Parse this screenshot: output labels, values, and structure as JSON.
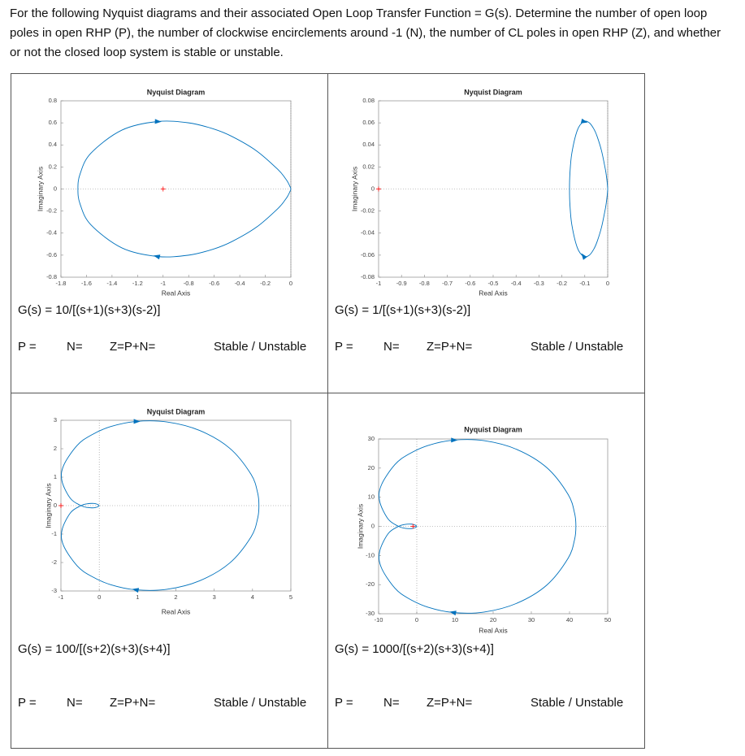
{
  "intro": "For the following Nyquist diagrams and their associated Open Loop Transfer Function = G(s).  Determine the number of open loop poles in open RHP (P), the number of clockwise encirclements around -1 (N), the number of CL poles in open RHP (Z), and whether or not the closed loop system is stable or unstable.",
  "cells": [
    {
      "chart_data": {
        "type": "line",
        "title": "Nyquist Diagram",
        "x_label": "Real Axis",
        "y_label": "Imaginary Axis",
        "xlim": [
          -1.8,
          0
        ],
        "xticks": [
          -1.8,
          -1.6,
          -1.4,
          -1.2,
          -1,
          -0.8,
          -0.6,
          -0.4,
          -0.2,
          0
        ],
        "ylim": [
          -0.8,
          0.8
        ],
        "yticks": [
          -0.8,
          -0.6,
          -0.4,
          -0.2,
          0,
          0.2,
          0.4,
          0.6,
          0.8
        ],
        "critical_point": {
          "x": -1,
          "y": 0,
          "color": "#ff0000"
        },
        "series": [
          {
            "color": "#0072bd",
            "x": [
              0,
              -0.0018,
              -0.0218,
              -0.0447,
              -0.103,
              -0.269,
              -0.46,
              -0.606,
              -0.8,
              -1.045,
              -1.323,
              -1.566,
              -1.65,
              -1.667,
              -1.65,
              -1.566,
              -1.323,
              -1.045,
              -0.8,
              -0.606,
              -0.46,
              -0.269,
              -0.103,
              -0.0447,
              -0.0218,
              -0.0018,
              0
            ],
            "values": [
              0,
              -0.0092,
              -0.0585,
              -0.0988,
              -0.179,
              -0.346,
              -0.476,
              -0.545,
              -0.6,
              -0.612,
              -0.534,
              -0.324,
              -0.137,
              0,
              0.137,
              0.324,
              0.534,
              0.612,
              0.6,
              0.545,
              0.476,
              0.346,
              0.179,
              0.0988,
              0.0585,
              0.0092,
              0
            ]
          }
        ]
      },
      "transfer_function": "G(s) = 10/[(s+1)(s+3)(s-2)]",
      "answer_row": {
        "p": "P =",
        "n": "N=",
        "z": "Z=P+N=",
        "stability": "Stable / Unstable"
      }
    },
    {
      "chart_data": {
        "type": "line",
        "title": "Nyquist Diagram",
        "x_label": "Real Axis",
        "y_label": "Imaginary Axis",
        "xlim": [
          -1,
          0
        ],
        "xticks": [
          -1,
          -0.9,
          -0.8,
          -0.7,
          -0.6,
          -0.5,
          -0.4,
          -0.3,
          -0.2,
          -0.1,
          0
        ],
        "ylim": [
          -0.08,
          0.08
        ],
        "yticks": [
          -0.08,
          -0.06,
          -0.04,
          -0.02,
          0,
          0.02,
          0.04,
          0.06,
          0.08
        ],
        "critical_point": {
          "x": -1,
          "y": 0,
          "color": "#ff0000"
        },
        "series": [
          {
            "color": "#0072bd",
            "x": [
              0,
              -0.00018,
              -0.00218,
              -0.00447,
              -0.0103,
              -0.0269,
              -0.046,
              -0.0606,
              -0.08,
              -0.1045,
              -0.1323,
              -0.1566,
              -0.165,
              -0.1667,
              -0.165,
              -0.1566,
              -0.1323,
              -0.1045,
              -0.08,
              -0.0606,
              -0.046,
              -0.0269,
              -0.0103,
              -0.00447,
              -0.00218,
              -0.00018,
              0
            ],
            "values": [
              0,
              -0.00092,
              -0.00585,
              -0.00988,
              -0.0179,
              -0.0346,
              -0.0476,
              -0.0545,
              -0.06,
              -0.0612,
              -0.0534,
              -0.0324,
              -0.0137,
              0,
              0.0137,
              0.0324,
              0.0534,
              0.0612,
              0.06,
              0.0545,
              0.0476,
              0.0346,
              0.0179,
              0.00988,
              0.00585,
              0.00092,
              0
            ]
          }
        ]
      },
      "transfer_function": "G(s) = 1/[(s+1)(s+3)(s-2)]",
      "answer_row": {
        "p": "P =",
        "n": "N=",
        "z": "Z=P+N=",
        "stability": "Stable / Unstable"
      }
    },
    {
      "chart_data": {
        "type": "line",
        "title": "Nyquist Diagram",
        "x_label": "Real Axis",
        "y_label": "Imaginary Axis",
        "xlim": [
          -1,
          5
        ],
        "xticks": [
          -1,
          0,
          1,
          2,
          3,
          4,
          5
        ],
        "ylim": [
          -3,
          3
        ],
        "yticks": [
          -3,
          -2,
          -1,
          0,
          1,
          2,
          3
        ],
        "critical_point": {
          "x": -1,
          "y": 0,
          "color": "#ff0000"
        },
        "series": [
          {
            "color": "#0072bd",
            "x": [
              0,
              -0.0351,
              -0.139,
              -0.3205,
              -0.476,
              -0.75,
              -0.974,
              -0.927,
              -0.577,
              -0.219,
              0.292,
              0.963,
              1.765,
              2.621,
              3.405,
              3.963,
              4.133,
              4.167,
              4.133,
              3.963,
              3.405,
              2.621,
              1.765,
              0.963,
              0.292,
              -0.219,
              -0.577,
              -0.927,
              -0.974,
              -0.75,
              -0.476,
              -0.3205,
              -0.139,
              -0.0351,
              0
            ],
            "values": [
              0,
              -0.0391,
              -0.0766,
              -0.0641,
              0,
              0.25,
              0.872,
              1.42,
              2.115,
              2.472,
              2.776,
              2.96,
              2.941,
              2.64,
              2.016,
              1.096,
              0.449,
              0,
              -0.449,
              -1.096,
              -2.016,
              -2.64,
              -2.941,
              -2.96,
              -2.776,
              -2.472,
              -2.115,
              -1.42,
              -0.872,
              -0.25,
              0,
              0.0641,
              0.0766,
              0.0391,
              0
            ]
          }
        ]
      },
      "transfer_function": "G(s) = 100/[(s+2)(s+3)(s+4)]",
      "answer_row": {
        "p": "P =",
        "n": "N=",
        "z": "Z=P+N=",
        "stability": "Stable / Unstable"
      }
    },
    {
      "chart_data": {
        "type": "line",
        "title": "Nyquist Diagram",
        "x_label": "Real Axis",
        "y_label": "Imaginary Axis",
        "xlim": [
          -10,
          50
        ],
        "xticks": [
          -10,
          0,
          10,
          20,
          30,
          40,
          50
        ],
        "ylim": [
          -30,
          30
        ],
        "yticks": [
          -30,
          -20,
          -10,
          0,
          10,
          20,
          30
        ],
        "critical_point": {
          "x": -1,
          "y": 0,
          "color": "#ff0000"
        },
        "series": [
          {
            "color": "#0072bd",
            "x": [
              0,
              -0.351,
              -1.39,
              -3.205,
              -4.76,
              -7.5,
              -9.74,
              -9.27,
              -5.77,
              -2.19,
              2.92,
              9.63,
              17.65,
              26.21,
              34.05,
              39.63,
              41.33,
              41.67,
              41.33,
              39.63,
              34.05,
              26.21,
              17.65,
              9.63,
              2.92,
              -2.19,
              -5.77,
              -9.27,
              -9.74,
              -7.5,
              -4.76,
              -3.205,
              -1.39,
              -0.351,
              0
            ],
            "values": [
              0,
              -0.391,
              -0.766,
              -0.641,
              0,
              2.5,
              8.72,
              14.2,
              21.15,
              24.72,
              27.76,
              29.6,
              29.41,
              26.4,
              20.16,
              10.96,
              4.49,
              0,
              -4.49,
              -10.96,
              -20.16,
              -26.4,
              -29.41,
              -29.6,
              -27.76,
              -24.72,
              -21.15,
              -14.2,
              -8.72,
              -2.5,
              0,
              0.641,
              0.766,
              0.391,
              0
            ]
          }
        ]
      },
      "transfer_function": "G(s) = 1000/[(s+2)(s+3)(s+4)]",
      "answer_row": {
        "p": "P =",
        "n": "N=",
        "z": "Z=P+N=",
        "stability": "Stable / Unstable"
      }
    }
  ]
}
